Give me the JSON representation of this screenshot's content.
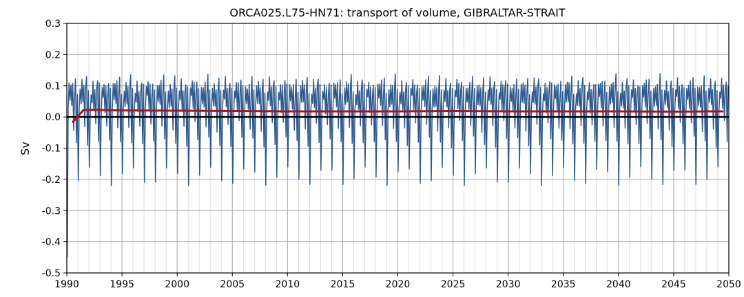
{
  "chart_data": {
    "type": "line",
    "title": "ORCA025.L75-HN71: transport of volume, GIBRALTAR-STRAIT",
    "xlabel": "",
    "ylabel": "Sv",
    "xlim": [
      1990,
      2050
    ],
    "ylim": [
      -0.5,
      0.3
    ],
    "xticks": [
      1990,
      1995,
      2000,
      2005,
      2010,
      2015,
      2020,
      2025,
      2030,
      2035,
      2040,
      2045,
      2050
    ],
    "xtick_labels": [
      "1990",
      "1995",
      "2000",
      "2005",
      "2010",
      "2015",
      "2020",
      "2025",
      "2030",
      "2035",
      "2040",
      "2045",
      "2050"
    ],
    "yticks": [
      -0.5,
      -0.4,
      -0.3,
      -0.2,
      -0.1,
      0.0,
      0.1,
      0.2,
      0.3
    ],
    "ytick_labels": [
      "-0.5",
      "-0.4",
      "-0.3",
      "-0.2",
      "-0.1",
      "0.0",
      "0.1",
      "0.2",
      "0.3"
    ],
    "grid": true,
    "minor_x_grid_step_years": 1,
    "zero_line": true,
    "series": [
      {
        "color": "#2e5a8f",
        "x_start": 1990.04,
        "x_step": 0.0833,
        "first_value": -0.45,
        "monthly_cycle": [
          0.02,
          0.09,
          0.05,
          0.11,
          0.03,
          0.1,
          -0.03,
          0.08,
          0.12,
          -0.08,
          0.09,
          -0.18
        ],
        "note_level": "monthly values oscillating roughly between -0.20 and 0.13"
      },
      {
        "color": "#b0101c",
        "x": [
          1990.5,
          1991.5,
          1992.5,
          1995,
          2000,
          2005,
          2010,
          2015,
          2020,
          2025,
          2030,
          2035,
          2040,
          2045,
          2048,
          2049.5
        ],
        "y": [
          -0.018,
          0.022,
          0.023,
          0.021,
          0.02,
          0.019,
          0.018,
          0.018,
          0.018,
          0.019,
          0.018,
          0.018,
          0.018,
          0.017,
          0.018,
          0.018
        ]
      }
    ]
  }
}
